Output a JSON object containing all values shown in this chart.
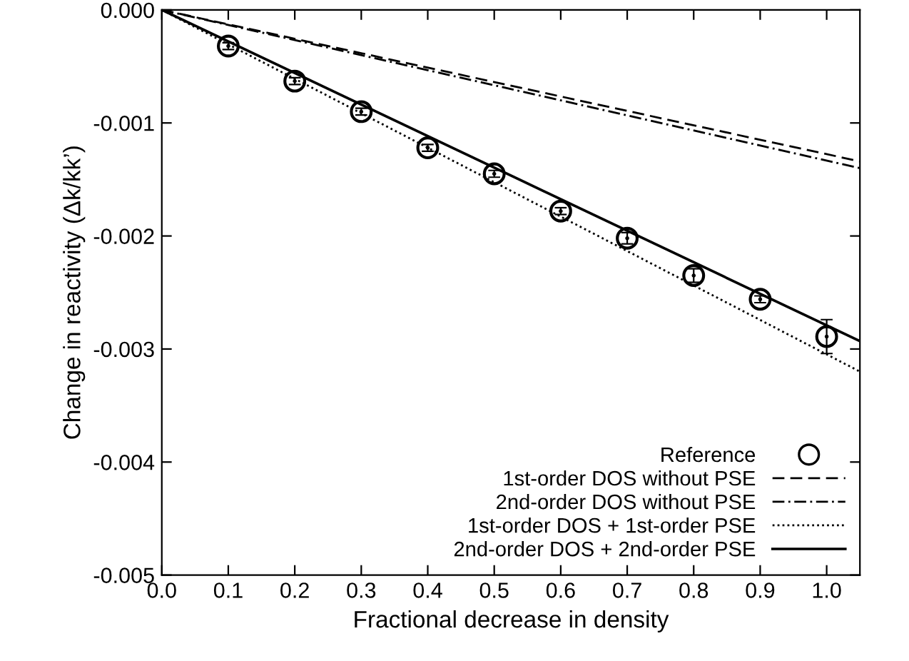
{
  "chart_data": {
    "type": "line",
    "xlabel": "Fractional decrease in density",
    "ylabel": "Change in reactivity (Δk/kk’)",
    "xlim": [
      0,
      1.05
    ],
    "ylim": [
      -0.005,
      0
    ],
    "xticks": [
      {
        "value": 0,
        "label": "0.0"
      },
      {
        "value": 0.1,
        "label": "0.1"
      },
      {
        "value": 0.2,
        "label": "0.2"
      },
      {
        "value": 0.3,
        "label": "0.3"
      },
      {
        "value": 0.4,
        "label": "0.4"
      },
      {
        "value": 0.5,
        "label": "0.5"
      },
      {
        "value": 0.6,
        "label": "0.6"
      },
      {
        "value": 0.7,
        "label": "0.7"
      },
      {
        "value": 0.8,
        "label": "0.8"
      },
      {
        "value": 0.9,
        "label": "0.9"
      },
      {
        "value": 1.0,
        "label": "1.0"
      }
    ],
    "yticks": [
      {
        "value": 0,
        "label": "0.000"
      },
      {
        "value": -0.001,
        "label": "-0.001"
      },
      {
        "value": -0.002,
        "label": "-0.002"
      },
      {
        "value": -0.003,
        "label": "-0.003"
      },
      {
        "value": -0.004,
        "label": "-0.004"
      },
      {
        "value": -0.005,
        "label": "-0.005"
      }
    ],
    "grid": false,
    "legend": "bottom right",
    "series": [
      {
        "name": "Reference",
        "type": "scatter",
        "marker": "circle",
        "color": "#000000",
        "x": [
          0.1,
          0.2,
          0.3,
          0.4,
          0.5,
          0.6,
          0.7,
          0.8,
          0.9,
          1.0
        ],
        "values": [
          -0.00032,
          -0.00063,
          -0.0009,
          -0.00122,
          -0.00145,
          -0.00178,
          -0.00202,
          -0.00235,
          -0.00256,
          -0.00289
        ],
        "errors": [
          3e-05,
          3e-05,
          3e-05,
          3e-05,
          3e-05,
          3e-05,
          5e-05,
          6e-05,
          3e-05,
          0.00015
        ]
      },
      {
        "name": "1st-order DOS without PSE",
        "line_style": "dashed",
        "color": "#000000",
        "x": [
          0,
          1.05
        ],
        "values": [
          0,
          -0.00134
        ]
      },
      {
        "name": "2nd-order DOS without PSE",
        "line_style": "dashdot",
        "color": "#000000",
        "x": [
          0,
          1.05
        ],
        "values": [
          0,
          -0.0014
        ]
      },
      {
        "name": "1st-order DOS + 1st-order PSE",
        "line_style": "dotted",
        "color": "#000000",
        "x": [
          0,
          1.05
        ],
        "values": [
          0,
          -0.0032
        ]
      },
      {
        "name": "2nd-order DOS + 2nd-order PSE",
        "line_style": "solid",
        "color": "#000000",
        "x": [
          0,
          1.05
        ],
        "values": [
          0,
          -0.00293
        ]
      }
    ]
  }
}
